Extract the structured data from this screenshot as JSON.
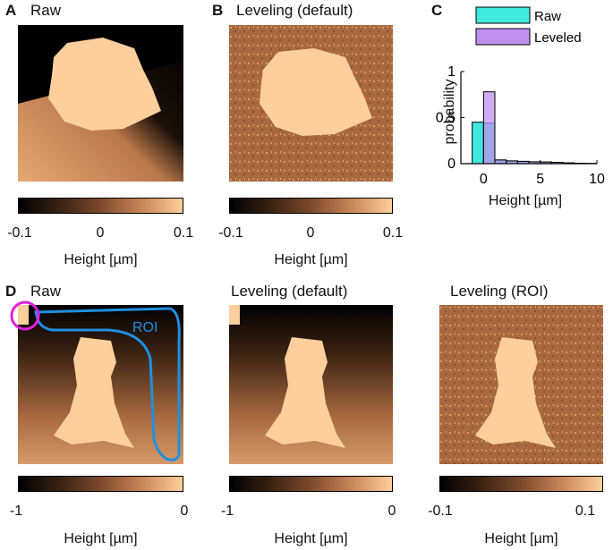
{
  "panels": {
    "A": {
      "label": "A",
      "title": "Raw"
    },
    "B": {
      "label": "B",
      "title": "Leveling (default)"
    },
    "C": {
      "label": "C"
    },
    "D": {
      "label": "D",
      "titles": [
        "Raw",
        "Leveling (default)",
        "Leveling (ROI)"
      ],
      "roi_label": "ROI"
    }
  },
  "colorbars": {
    "top_ticks": [
      "-0.1",
      "0",
      "0.1"
    ],
    "bottom_left_ticks": [
      "-1",
      "0"
    ],
    "bottom_mid_ticks": [
      "-1",
      "0"
    ],
    "bottom_right_ticks": [
      "-0.1",
      "0.1"
    ],
    "label": "Height [µm]"
  },
  "chart_data": {
    "type": "bar",
    "xlabel": "Height [µm]",
    "ylabel": "probability",
    "xlim": [
      -2,
      10
    ],
    "ylim": [
      0,
      1
    ],
    "xticks": [
      "0",
      "5",
      "10"
    ],
    "yticks": [
      "0",
      "0.5",
      "1"
    ],
    "legend": "top",
    "series": [
      {
        "name": "Raw",
        "color": "#40e8e0",
        "bins": [
          [
            -1,
            0,
            0.45
          ],
          [
            0,
            1,
            0.44
          ],
          [
            1,
            2,
            0.04
          ],
          [
            2,
            3,
            0.03
          ],
          [
            3,
            4,
            0.025
          ],
          [
            4,
            5,
            0.02
          ],
          [
            5,
            6,
            0.018
          ],
          [
            6,
            7,
            0.014
          ],
          [
            7,
            8,
            0.008
          ],
          [
            8,
            9,
            0.004
          ],
          [
            9,
            10,
            0.002
          ]
        ]
      },
      {
        "name": "Leveled",
        "color": "#c08ff0",
        "bins": [
          [
            -1,
            0,
            0.0
          ],
          [
            0,
            1,
            0.78
          ],
          [
            1,
            2,
            0.04
          ],
          [
            2,
            3,
            0.03
          ],
          [
            3,
            4,
            0.025
          ],
          [
            4,
            5,
            0.02
          ],
          [
            5,
            6,
            0.018
          ],
          [
            6,
            7,
            0.014
          ],
          [
            7,
            8,
            0.008
          ],
          [
            8,
            9,
            0.004
          ],
          [
            9,
            10,
            0.002
          ]
        ]
      }
    ]
  }
}
